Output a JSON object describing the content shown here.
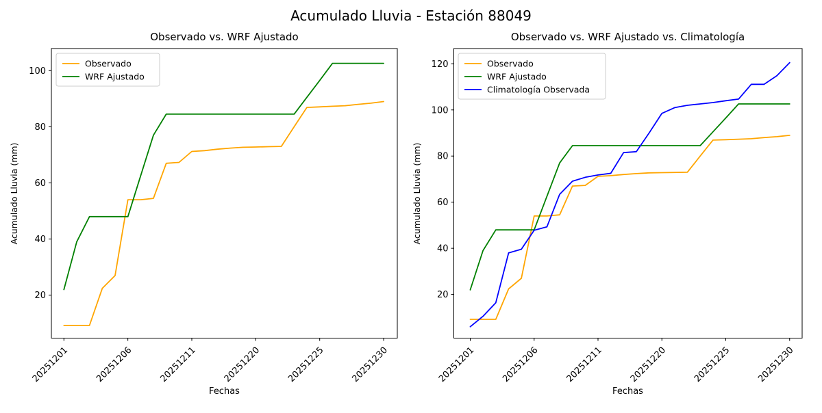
{
  "figure": {
    "suptitle": "Acumulado Lluvia - Estación 88049",
    "background": "#ffffff",
    "text_color": "#000000"
  },
  "chart_data": [
    {
      "type": "line",
      "title": "Observado vs. WRF Ajustado",
      "xlabel": "Fechas",
      "ylabel": "Acumulado Lluvia (mm)",
      "n_points": 26,
      "x_tick_positions": [
        0,
        5,
        10,
        15,
        20,
        25
      ],
      "x_tick_labels": [
        "20251201",
        "20251206",
        "20251211",
        "20251220",
        "20251225",
        "20251230"
      ],
      "x_tick_rotation_deg": 45,
      "y_ticks": [
        20,
        40,
        60,
        80,
        100
      ],
      "xlim": [
        -0.98,
        26.07
      ],
      "ylim": [
        4.7,
        107.9
      ],
      "grid": false,
      "legend_position": "upper left",
      "series": [
        {
          "name": "Observado",
          "color": "#FFA500",
          "values": [
            9.2,
            9.2,
            9.2,
            22.4,
            27,
            54,
            54,
            54.5,
            67,
            67.3,
            71.2,
            71.5,
            72,
            72.4,
            72.7,
            72.8,
            72.9,
            73,
            80,
            86.9,
            87.1,
            87.3,
            87.5,
            88,
            88.4,
            89
          ]
        },
        {
          "name": "WRF Ajustado",
          "color": "#008000",
          "values": [
            22,
            39,
            48,
            48,
            48,
            48,
            62.5,
            77,
            84.5,
            84.5,
            84.5,
            84.5,
            84.5,
            84.5,
            84.5,
            84.5,
            84.5,
            84.5,
            84.5,
            90.5,
            96.5,
            102.6,
            102.6,
            102.6,
            102.6,
            102.6
          ]
        }
      ]
    },
    {
      "type": "line",
      "title": "Observado vs. WRF Ajustado vs. Climatología",
      "xlabel": "Fechas",
      "ylabel": "Acumulado Lluvia (mm)",
      "n_points": 26,
      "x_tick_positions": [
        0,
        5,
        10,
        15,
        20,
        25
      ],
      "x_tick_labels": [
        "20251201",
        "20251206",
        "20251211",
        "20251220",
        "20251225",
        "20251230"
      ],
      "x_tick_rotation_deg": 45,
      "y_ticks": [
        20,
        40,
        60,
        80,
        100,
        120
      ],
      "xlim": [
        -1.18,
        26.03
      ],
      "ylim": [
        1.05,
        126.6
      ],
      "grid": false,
      "legend_position": "upper left",
      "series": [
        {
          "name": "Observado",
          "color": "#FFA500",
          "values": [
            9.2,
            9.2,
            9.2,
            22.4,
            27,
            54,
            54,
            54.5,
            67,
            67.3,
            71.2,
            71.5,
            72,
            72.4,
            72.7,
            72.8,
            72.9,
            73,
            80,
            86.9,
            87.1,
            87.3,
            87.5,
            88,
            88.4,
            89
          ]
        },
        {
          "name": "WRF Ajustado",
          "color": "#008000",
          "values": [
            22,
            39,
            48,
            48,
            48,
            48,
            62.5,
            77,
            84.5,
            84.5,
            84.5,
            84.5,
            84.5,
            84.5,
            84.5,
            84.5,
            84.5,
            84.5,
            84.5,
            90.5,
            96.5,
            102.6,
            102.6,
            102.6,
            102.6,
            102.6
          ]
        },
        {
          "name": "Climatología Observada",
          "color": "#0000FF",
          "values": [
            6,
            10.5,
            16.4,
            38,
            39.6,
            47.8,
            49.3,
            63.4,
            69.1,
            70.8,
            71.8,
            72.5,
            81.5,
            81.9,
            90,
            98.5,
            101,
            102,
            102.6,
            103.2,
            104,
            104.7,
            111.1,
            111.1,
            114.8,
            120.5
          ]
        }
      ]
    }
  ]
}
